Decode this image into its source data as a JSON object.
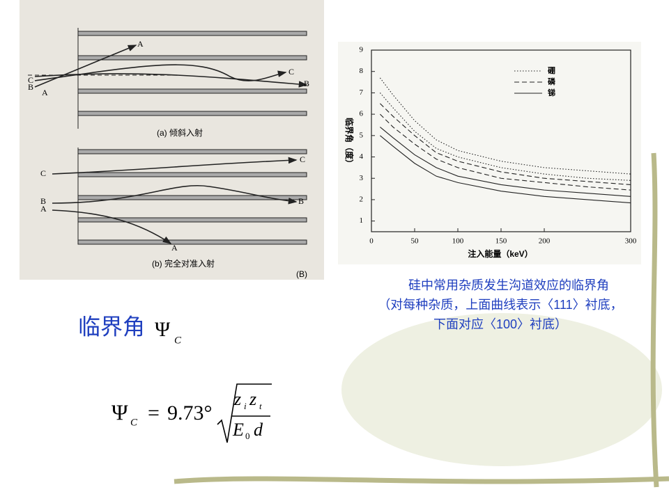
{
  "heading": {
    "text": "临界角",
    "symbol": "Ψ",
    "subscript": "C"
  },
  "formula": {
    "lhs": "Ψ",
    "lhs_sub": "C",
    "equals": "=",
    "coefficient": "9.73°",
    "numerator": [
      "z",
      "i",
      "z",
      "t"
    ],
    "denominator": [
      "E",
      "0",
      "d"
    ]
  },
  "left_figure": {
    "panel_a": {
      "start_labels": [
        "C",
        "B",
        "A"
      ],
      "end_labels": [
        "A",
        "C",
        "B"
      ],
      "caption": "(a) 倾斜入射"
    },
    "panel_b": {
      "start_labels": [
        "C",
        "B",
        "A"
      ],
      "end_labels": [
        "C",
        "B",
        "A"
      ],
      "caption": "(b) 完全对准入射"
    },
    "tag": "(B)"
  },
  "caption": [
    "硅中常用杂质发生沟道效应的临界角",
    "（对每种杂质，上面曲线表示〈111〉衬底，",
    "下面对应〈100〉衬底）"
  ],
  "chart_data": {
    "type": "line",
    "xlabel": "注入能量（keV）",
    "ylabel": "临界角（度）",
    "x": [
      10,
      25,
      50,
      75,
      100,
      150,
      200,
      250,
      300
    ],
    "series": [
      {
        "name": "硼",
        "style": "dotted",
        "color": "#222222",
        "values": [
          7.7,
          6.9,
          5.7,
          4.8,
          4.3,
          3.8,
          3.5,
          3.35,
          3.2
        ]
      },
      {
        "name": "硼",
        "style": "dotted",
        "color": "#222222",
        "values": [
          7.0,
          6.3,
          5.2,
          4.4,
          4.0,
          3.5,
          3.2,
          3.0,
          2.9
        ]
      },
      {
        "name": "磷",
        "style": "dashed",
        "color": "#222222",
        "values": [
          6.5,
          5.9,
          5.0,
          4.2,
          3.8,
          3.3,
          3.0,
          2.85,
          2.7
        ]
      },
      {
        "name": "磷",
        "style": "dashed",
        "color": "#222222",
        "values": [
          6.0,
          5.4,
          4.6,
          3.9,
          3.5,
          3.0,
          2.8,
          2.6,
          2.45
        ]
      },
      {
        "name": "锑",
        "style": "solid",
        "color": "#222222",
        "values": [
          5.4,
          4.9,
          4.1,
          3.5,
          3.1,
          2.7,
          2.45,
          2.3,
          2.15
        ]
      },
      {
        "name": "锑",
        "style": "solid",
        "color": "#222222",
        "values": [
          5.0,
          4.5,
          3.7,
          3.1,
          2.8,
          2.4,
          2.15,
          2.0,
          1.85
        ]
      }
    ],
    "xlim": [
      0,
      300
    ],
    "xticks": [
      0,
      50,
      100,
      150,
      200,
      300
    ],
    "ylim": [
      0.5,
      9
    ],
    "yticks": [
      1,
      2,
      3,
      4,
      5,
      6,
      7,
      8,
      9
    ],
    "legend": "upper-right"
  }
}
